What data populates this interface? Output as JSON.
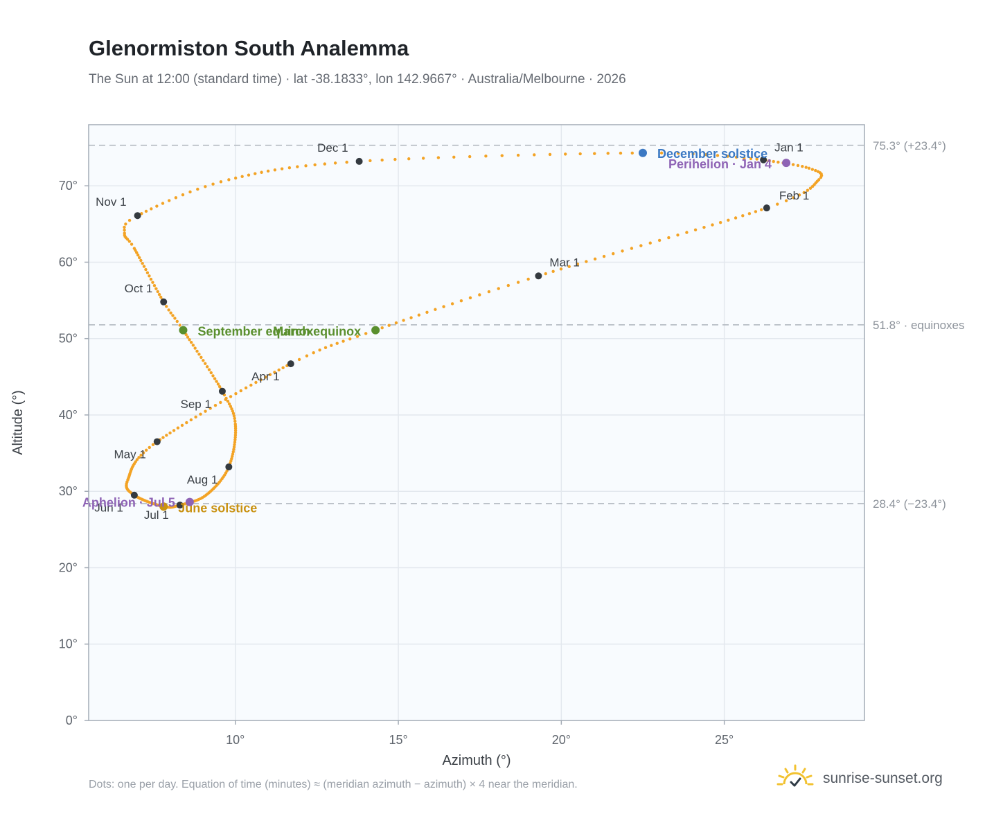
{
  "header": {
    "title": "Glenormiston South Analemma",
    "subtitle": "The Sun at 12:00 (standard time) · lat -38.1833°, lon 142.9667° · Australia/Melbourne · 2026"
  },
  "footer": {
    "note": "Dots: one per day. Equation of time (minutes) ≈ (meridian azimuth − azimuth) × 4 near the meridian.",
    "brand": "sunrise-sunset.org"
  },
  "colors": {
    "curve": "#f3a325",
    "month_marker": "#343a40",
    "december_solstice": "#3b78c3",
    "june_solstice": "#c99212",
    "equinox": "#5a8f2e",
    "apsis": "#8e63b5",
    "reference_line": "#b8bec5",
    "plot_background": "#f8fbfe",
    "grid": "#e3e8ee"
  },
  "chart_data": {
    "type": "scatter",
    "title": "Glenormiston South Analemma",
    "xlabel": "Azimuth (°)",
    "ylabel": "Altitude (°)",
    "xlim": [
      5.5,
      29.3
    ],
    "ylim": [
      0,
      78
    ],
    "grid": true,
    "x_ticks": [
      {
        "value": 10,
        "label": "10°"
      },
      {
        "value": 15,
        "label": "15°"
      },
      {
        "value": 20,
        "label": "20°"
      },
      {
        "value": 25,
        "label": "25°"
      }
    ],
    "y_ticks": [
      {
        "value": 0,
        "label": "0°"
      },
      {
        "value": 10,
        "label": "10°"
      },
      {
        "value": 20,
        "label": "20°"
      },
      {
        "value": 30,
        "label": "30°"
      },
      {
        "value": 40,
        "label": "40°"
      },
      {
        "value": 50,
        "label": "50°"
      },
      {
        "value": 60,
        "label": "60°"
      },
      {
        "value": 70,
        "label": "70°"
      }
    ],
    "reference_lines": [
      {
        "altitude": 75.3,
        "label": "75.3° (+23.4°)"
      },
      {
        "altitude": 51.8,
        "label": "51.8° · equinoxes"
      },
      {
        "altitude": 28.4,
        "label": "28.4° (−23.4°)"
      }
    ],
    "daily_series": {
      "description_on_chart": "Dots: one per day",
      "anchors": [
        {
          "date": "Jan 1",
          "day": 1,
          "azimuth": 26.2,
          "altitude": 73.4
        },
        {
          "date": "Jan 12",
          "day": 12,
          "azimuth": 27.6,
          "altitude": 72.3
        },
        {
          "date": "Jan 20",
          "day": 20,
          "azimuth": 27.9,
          "altitude": 70.8
        },
        {
          "date": "Feb 1",
          "day": 32,
          "azimuth": 26.3,
          "altitude": 67.1
        },
        {
          "date": "Mar 1",
          "day": 60,
          "azimuth": 19.3,
          "altitude": 58.2
        },
        {
          "date": "Mar 20",
          "day": 79,
          "azimuth": 14.3,
          "altitude": 51.1
        },
        {
          "date": "Apr 1",
          "day": 91,
          "azimuth": 11.7,
          "altitude": 46.7
        },
        {
          "date": "May 1",
          "day": 121,
          "azimuth": 7.6,
          "altitude": 36.5
        },
        {
          "date": "May 20",
          "day": 140,
          "azimuth": 6.7,
          "altitude": 31.5
        },
        {
          "date": "Jun 1",
          "day": 152,
          "azimuth": 6.9,
          "altitude": 29.5
        },
        {
          "date": "Jun 21",
          "day": 172,
          "azimuth": 7.8,
          "altitude": 28.0
        },
        {
          "date": "Jul 1",
          "day": 182,
          "azimuth": 8.3,
          "altitude": 28.2
        },
        {
          "date": "Jul 15",
          "day": 196,
          "azimuth": 9.1,
          "altitude": 29.5
        },
        {
          "date": "Aug 1",
          "day": 213,
          "azimuth": 9.8,
          "altitude": 33.2
        },
        {
          "date": "Aug 20",
          "day": 232,
          "azimuth": 10.0,
          "altitude": 38.8
        },
        {
          "date": "Sep 1",
          "day": 244,
          "azimuth": 9.6,
          "altitude": 43.1
        },
        {
          "date": "Sep 23",
          "day": 266,
          "azimuth": 8.4,
          "altitude": 51.1
        },
        {
          "date": "Oct 1",
          "day": 274,
          "azimuth": 7.8,
          "altitude": 54.8
        },
        {
          "date": "Oct 20",
          "day": 293,
          "azimuth": 6.9,
          "altitude": 61.8
        },
        {
          "date": "Oct 27",
          "day": 300,
          "azimuth": 6.6,
          "altitude": 63.8
        },
        {
          "date": "Nov 1",
          "day": 305,
          "azimuth": 7.0,
          "altitude": 66.1
        },
        {
          "date": "Nov 15",
          "day": 319,
          "azimuth": 9.8,
          "altitude": 70.8
        },
        {
          "date": "Dec 1",
          "day": 335,
          "azimuth": 13.8,
          "altitude": 73.2
        },
        {
          "date": "Dec 21",
          "day": 355,
          "azimuth": 22.5,
          "altitude": 74.3
        },
        {
          "date": "Dec 31",
          "day": 365,
          "azimuth": 26.0,
          "altitude": 73.5
        }
      ]
    },
    "month_markers": [
      {
        "label": "Jan 1",
        "azimuth": 26.2,
        "altitude": 73.4,
        "anchor": "start",
        "dx": 16,
        "dy": -12
      },
      {
        "label": "Feb 1",
        "azimuth": 26.3,
        "altitude": 67.1,
        "anchor": "start",
        "dx": 18,
        "dy": -12
      },
      {
        "label": "Mar 1",
        "azimuth": 19.3,
        "altitude": 58.2,
        "anchor": "start",
        "dx": 16,
        "dy": -14
      },
      {
        "label": "Apr 1",
        "azimuth": 11.7,
        "altitude": 46.7,
        "anchor": "end",
        "dx": -16,
        "dy": 24
      },
      {
        "label": "May 1",
        "azimuth": 7.6,
        "altitude": 36.5,
        "anchor": "end",
        "dx": -16,
        "dy": 24
      },
      {
        "label": "Jun 1",
        "azimuth": 6.9,
        "altitude": 29.5,
        "anchor": "end",
        "dx": -16,
        "dy": 24
      },
      {
        "label": "Jul 1",
        "azimuth": 8.3,
        "altitude": 28.2,
        "anchor": "end",
        "dx": -16,
        "dy": 20
      },
      {
        "label": "Aug 1",
        "azimuth": 9.8,
        "altitude": 33.2,
        "anchor": "end",
        "dx": -16,
        "dy": 24
      },
      {
        "label": "Sep 1",
        "azimuth": 9.6,
        "altitude": 43.1,
        "anchor": "end",
        "dx": -16,
        "dy": 24
      },
      {
        "label": "Oct 1",
        "azimuth": 7.8,
        "altitude": 54.8,
        "anchor": "end",
        "dx": -16,
        "dy": -14
      },
      {
        "label": "Nov 1",
        "azimuth": 7.0,
        "altitude": 66.1,
        "anchor": "end",
        "dx": -16,
        "dy": -14
      },
      {
        "label": "Dec 1",
        "azimuth": 13.8,
        "altitude": 73.2,
        "anchor": "end",
        "dx": -16,
        "dy": -14
      }
    ],
    "events": [
      {
        "label": "December solstice",
        "azimuth": 22.5,
        "altitude": 74.3,
        "color_key": "december_solstice",
        "anchor": "start",
        "dx": 21,
        "dy": 7
      },
      {
        "label": "Perihelion · Jan 4",
        "azimuth": 26.9,
        "altitude": 73.0,
        "color_key": "apsis",
        "anchor": "end",
        "dx": -21,
        "dy": 8
      },
      {
        "label": "March equinox",
        "azimuth": 14.3,
        "altitude": 51.1,
        "color_key": "equinox",
        "anchor": "end",
        "dx": -21,
        "dy": 8
      },
      {
        "label": "September equinox",
        "azimuth": 8.4,
        "altitude": 51.1,
        "color_key": "equinox",
        "anchor": "start",
        "dx": 21,
        "dy": 8
      },
      {
        "label": "June solstice",
        "azimuth": 7.8,
        "altitude": 28.0,
        "color_key": "june_solstice",
        "anchor": "start",
        "dx": 21,
        "dy": 8
      },
      {
        "label": "Aphelion · Jul 5",
        "azimuth": 8.6,
        "altitude": 28.6,
        "color_key": "apsis",
        "anchor": "end",
        "dx": -21,
        "dy": 7
      }
    ]
  }
}
